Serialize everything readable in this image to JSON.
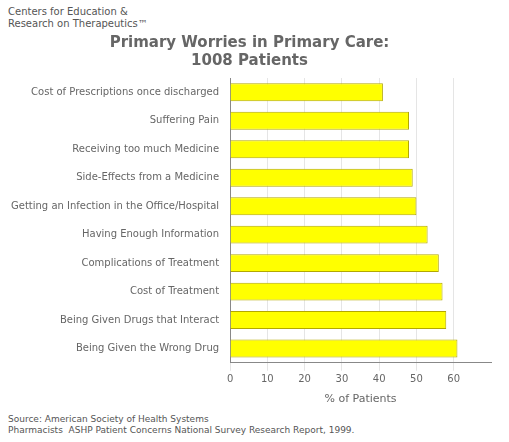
{
  "chart_data": {
    "type": "bar",
    "orientation": "horizontal",
    "title": [
      "Primary Worries in Primary Care:",
      "1008 Patients"
    ],
    "subtitle": [
      "Centers for Education &",
      "Research on Therapeutics™"
    ],
    "annotations": [
      "Source: American Society of Health Systems\nPharmacists  ASHP Patient Concerns National Survey Research Report, 1999."
    ],
    "categories": [
      "Cost of Prescriptions once discharged",
      "Suffering Pain",
      "Receiving too much Medicine",
      "Side-Effects from a Medicine",
      "Getting an Infection in the Office/Hospital",
      "Having Enough Information",
      "Complications of Treatment",
      "Cost of Treatment",
      "Being Given Drugs that Interact",
      "Being Given the Wrong Drug"
    ],
    "values": [
      41,
      48,
      48,
      49,
      50,
      53,
      56,
      57,
      58,
      61
    ],
    "color": "#FFFF00",
    "xlabel": "% of Patients",
    "xlim": [
      0,
      70
    ],
    "xticks": [
      0,
      10,
      20,
      30,
      40,
      50,
      60
    ],
    "grid": true
  }
}
